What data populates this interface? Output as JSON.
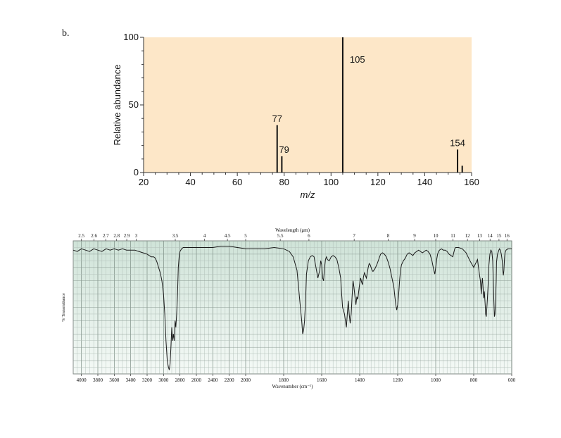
{
  "panel_label": "b.",
  "chart_data": [
    {
      "type": "bar",
      "title": "",
      "xlabel": "m/z",
      "ylabel": "Relative abundance",
      "xlim": [
        20,
        160
      ],
      "ylim": [
        0,
        100
      ],
      "x_ticks": [
        20,
        40,
        60,
        80,
        100,
        120,
        140,
        160
      ],
      "y_ticks": [
        0,
        50,
        100
      ],
      "background_color": "#fde7c8",
      "bar_color": "#111111",
      "peaks": [
        {
          "mz": 77,
          "abundance": 35,
          "label": "77"
        },
        {
          "mz": 79,
          "abundance": 12,
          "label": "79"
        },
        {
          "mz": 105,
          "abundance": 100,
          "label": "105"
        },
        {
          "mz": 154,
          "abundance": 17,
          "label": "154"
        },
        {
          "mz": 156,
          "abundance": 5,
          "label": ""
        }
      ]
    },
    {
      "type": "line",
      "title": "",
      "xlabel": "Wavenumber (cm⁻¹)",
      "x2label": "Wavelength (μm)",
      "ylabel": "% Transmittance",
      "xlim": [
        4100,
        600
      ],
      "ylim": [
        0,
        100
      ],
      "x_ticks": [
        4000,
        3800,
        3600,
        3400,
        3200,
        3000,
        2800,
        2600,
        2400,
        2200,
        2000,
        1800,
        1600,
        1400,
        1200,
        1000,
        800,
        600
      ],
      "x2_ticks": [
        "2.5",
        "2.6",
        "2.7",
        "2.8",
        "2.9",
        "3",
        "3.5",
        "4",
        "4.5",
        "5",
        "5.5",
        "6",
        "7",
        "8",
        "9",
        "10",
        "11",
        "12",
        "13",
        "14",
        "15",
        "16"
      ],
      "x2_tick_wavenumbers": [
        4000,
        3846,
        3704,
        3571,
        3448,
        3333,
        2857,
        2500,
        2222,
        2000,
        1818,
        1667,
        1429,
        1250,
        1111,
        1000,
        909,
        833,
        769,
        714,
        667,
        625
      ],
      "grid": true,
      "background_color": "#cfe3d8",
      "series": [
        {
          "name": "",
          "x": [
            4100,
            4050,
            4000,
            3950,
            3900,
            3850,
            3800,
            3750,
            3700,
            3650,
            3600,
            3550,
            3500,
            3450,
            3400,
            3350,
            3300,
            3250,
            3200,
            3150,
            3120,
            3100,
            3080,
            3060,
            3040,
            3020,
            3000,
            2985,
            2970,
            2955,
            2940,
            2930,
            2920,
            2910,
            2900,
            2890,
            2880,
            2870,
            2860,
            2850,
            2840,
            2830,
            2820,
            2810,
            2800,
            2780,
            2760,
            2700,
            2600,
            2500,
            2400,
            2300,
            2200,
            2100,
            2000,
            1950,
            1900,
            1850,
            1800,
            1770,
            1750,
            1730,
            1715,
            1705,
            1700,
            1695,
            1690,
            1685,
            1680,
            1670,
            1660,
            1650,
            1640,
            1630,
            1620,
            1610,
            1605,
            1600,
            1595,
            1590,
            1585,
            1580,
            1575,
            1570,
            1560,
            1550,
            1540,
            1530,
            1520,
            1510,
            1500,
            1495,
            1490,
            1480,
            1470,
            1465,
            1460,
            1455,
            1450,
            1445,
            1440,
            1435,
            1430,
            1425,
            1420,
            1415,
            1410,
            1405,
            1400,
            1395,
            1390,
            1385,
            1380,
            1375,
            1370,
            1365,
            1360,
            1355,
            1350,
            1345,
            1340,
            1335,
            1330,
            1320,
            1310,
            1300,
            1290,
            1280,
            1270,
            1260,
            1250,
            1240,
            1230,
            1220,
            1215,
            1210,
            1205,
            1200,
            1195,
            1190,
            1185,
            1180,
            1170,
            1160,
            1150,
            1140,
            1130,
            1120,
            1110,
            1100,
            1090,
            1080,
            1070,
            1060,
            1050,
            1040,
            1030,
            1020,
            1010,
            1005,
            1000,
            995,
            990,
            985,
            980,
            970,
            960,
            950,
            940,
            930,
            920,
            910,
            905,
            900,
            895,
            890,
            880,
            860,
            840,
            820,
            800,
            790,
            780,
            775,
            770,
            765,
            760,
            757,
            754,
            750,
            747,
            744,
            740,
            737,
            734,
            731,
            728,
            725,
            722,
            720,
            715,
            710,
            705,
            700,
            697,
            694,
            691,
            688,
            685,
            682,
            680,
            675,
            670,
            665,
            660,
            655,
            650,
            647,
            644,
            641,
            638,
            635,
            630,
            620,
            610,
            600
          ],
          "y": [
            93,
            92,
            94,
            93,
            92,
            94,
            93,
            92,
            94,
            93,
            94,
            93,
            94,
            93,
            93,
            93,
            92,
            91,
            90,
            88,
            88,
            87,
            84,
            80,
            76,
            70,
            60,
            45,
            25,
            10,
            5,
            3,
            8,
            20,
            35,
            25,
            30,
            25,
            40,
            35,
            45,
            60,
            80,
            88,
            92,
            94,
            95,
            95,
            95,
            95,
            95,
            96,
            96,
            95,
            94,
            94,
            94,
            95,
            94,
            92,
            88,
            78,
            55,
            40,
            30,
            33,
            40,
            55,
            75,
            85,
            88,
            89,
            88,
            80,
            72,
            78,
            85,
            82,
            72,
            70,
            80,
            86,
            88,
            86,
            85,
            88,
            89,
            88,
            86,
            80,
            72,
            60,
            50,
            45,
            35,
            45,
            55,
            45,
            38,
            45,
            58,
            70,
            65,
            58,
            52,
            58,
            56,
            62,
            68,
            72,
            69,
            67,
            73,
            76,
            74,
            72,
            76,
            80,
            83,
            82,
            80,
            78,
            77,
            79,
            82,
            86,
            90,
            91,
            90,
            88,
            84,
            79,
            72,
            65,
            58,
            52,
            48,
            52,
            60,
            70,
            78,
            82,
            85,
            87,
            90,
            91,
            90,
            89,
            91,
            92,
            93,
            92,
            91,
            92,
            93,
            92,
            90,
            85,
            78,
            75,
            80,
            86,
            90,
            92,
            93,
            94,
            93,
            93,
            92,
            90,
            89,
            88,
            91,
            94,
            95,
            95,
            95,
            94,
            91,
            85,
            80,
            83,
            86,
            80,
            75,
            70,
            60,
            68,
            72,
            63,
            57,
            62,
            53,
            45,
            43,
            49,
            56,
            65,
            75,
            82,
            90,
            93,
            92,
            85,
            70,
            55,
            43,
            45,
            55,
            70,
            84,
            90,
            92,
            94,
            93,
            90,
            85,
            78,
            74,
            78,
            86,
            91,
            93,
            94,
            94,
            94
          ]
        }
      ]
    }
  ]
}
